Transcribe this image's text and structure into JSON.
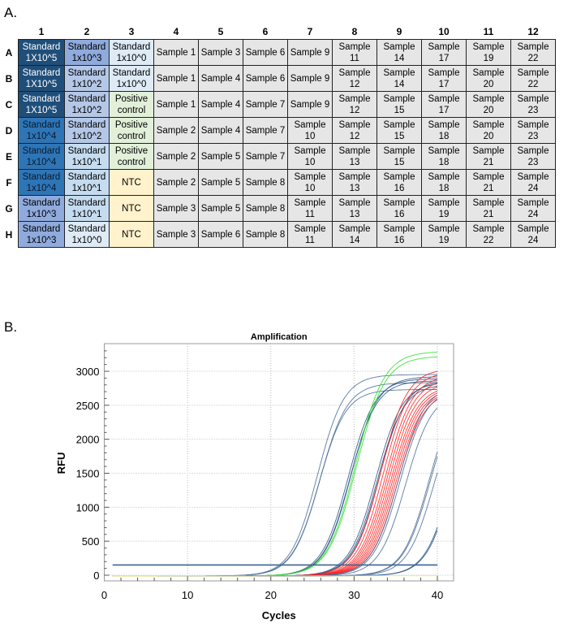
{
  "panels": {
    "a_label": "A.",
    "b_label": "B."
  },
  "plate": {
    "column_headers": [
      "1",
      "2",
      "3",
      "4",
      "5",
      "6",
      "7",
      "8",
      "9",
      "10",
      "11",
      "12"
    ],
    "row_headers": [
      "A",
      "B",
      "C",
      "D",
      "E",
      "F",
      "G",
      "H"
    ],
    "fill_colors": {
      "std_1e5": "#1f4e79",
      "std_1e4": "#2e75b6",
      "std_1e3": "#8faadc",
      "std_1e2": "#b4c7e7",
      "std_1e1": "#c5dcf0",
      "std_1e0": "#deebf7",
      "positive": "#e2f0d9",
      "ntc": "#fff2cc",
      "sample": "#e7e6e6"
    },
    "rows": [
      [
        [
          "Standard 1X10^5",
          "std_1e5"
        ],
        [
          "Standard 1x10^3",
          "std_1e3"
        ],
        [
          "Standard 1x10^0",
          "std_1e0"
        ],
        [
          "Sample 1",
          "sample"
        ],
        [
          "Sample 3",
          "sample"
        ],
        [
          "Sample 6",
          "sample"
        ],
        [
          "Sample 9",
          "sample"
        ],
        [
          "Sample 11",
          "sample"
        ],
        [
          "Sample 14",
          "sample"
        ],
        [
          "Sample 17",
          "sample"
        ],
        [
          "Sample 19",
          "sample"
        ],
        [
          "Sample 22",
          "sample"
        ]
      ],
      [
        [
          "Standard 1X10^5",
          "std_1e5"
        ],
        [
          "Standard 1x10^2",
          "std_1e2"
        ],
        [
          "Standard 1x10^0",
          "std_1e0"
        ],
        [
          "Sample 1",
          "sample"
        ],
        [
          "Sample 4",
          "sample"
        ],
        [
          "Sample 6",
          "sample"
        ],
        [
          "Sample 9",
          "sample"
        ],
        [
          "Sample 12",
          "sample"
        ],
        [
          "Sample 14",
          "sample"
        ],
        [
          "Sample 17",
          "sample"
        ],
        [
          "Sample 20",
          "sample"
        ],
        [
          "Sample 22",
          "sample"
        ]
      ],
      [
        [
          "Standard 1X10^5",
          "std_1e5"
        ],
        [
          "Standard 1x10^2",
          "std_1e2"
        ],
        [
          "Positive control",
          "positive"
        ],
        [
          "Sample 1",
          "sample"
        ],
        [
          "Sample 4",
          "sample"
        ],
        [
          "Sample 7",
          "sample"
        ],
        [
          "Sample 9",
          "sample"
        ],
        [
          "Sample 12",
          "sample"
        ],
        [
          "Sample 15",
          "sample"
        ],
        [
          "Sample 17",
          "sample"
        ],
        [
          "Sample 20",
          "sample"
        ],
        [
          "Sample 23",
          "sample"
        ]
      ],
      [
        [
          "Standard 1x10^4",
          "std_1e4"
        ],
        [
          "Standard 1x10^2",
          "std_1e2"
        ],
        [
          "Positive control",
          "positive"
        ],
        [
          "Sample 2",
          "sample"
        ],
        [
          "Sample 4",
          "sample"
        ],
        [
          "Sample 7",
          "sample"
        ],
        [
          "Sample 10",
          "sample"
        ],
        [
          "Sample 12",
          "sample"
        ],
        [
          "Sample 15",
          "sample"
        ],
        [
          "Sample 18",
          "sample"
        ],
        [
          "Sample 20",
          "sample"
        ],
        [
          "Sample 23",
          "sample"
        ]
      ],
      [
        [
          "Standard 1x10^4",
          "std_1e4"
        ],
        [
          "Standard 1x10^1",
          "std_1e1"
        ],
        [
          "Positive control",
          "positive"
        ],
        [
          "Sample 2",
          "sample"
        ],
        [
          "Sample 5",
          "sample"
        ],
        [
          "Sample 7",
          "sample"
        ],
        [
          "Sample 10",
          "sample"
        ],
        [
          "Sample 13",
          "sample"
        ],
        [
          "Sample 15",
          "sample"
        ],
        [
          "Sample 18",
          "sample"
        ],
        [
          "Sample 21",
          "sample"
        ],
        [
          "Sample 23",
          "sample"
        ]
      ],
      [
        [
          "Standard 1x10^4",
          "std_1e4"
        ],
        [
          "Standard 1x10^1",
          "std_1e1"
        ],
        [
          "NTC",
          "ntc"
        ],
        [
          "Sample 2",
          "sample"
        ],
        [
          "Sample 5",
          "sample"
        ],
        [
          "Sample 8",
          "sample"
        ],
        [
          "Sample 10",
          "sample"
        ],
        [
          "Sample 13",
          "sample"
        ],
        [
          "Sample 16",
          "sample"
        ],
        [
          "Sample 18",
          "sample"
        ],
        [
          "Sample 21",
          "sample"
        ],
        [
          "Sample 24",
          "sample"
        ]
      ],
      [
        [
          "Standard 1x10^3",
          "std_1e3"
        ],
        [
          "Standard 1x10^1",
          "std_1e1"
        ],
        [
          "NTC",
          "ntc"
        ],
        [
          "Sample 3",
          "sample"
        ],
        [
          "Sample 5",
          "sample"
        ],
        [
          "Sample 8",
          "sample"
        ],
        [
          "Sample 11",
          "sample"
        ],
        [
          "Sample 13",
          "sample"
        ],
        [
          "Sample 16",
          "sample"
        ],
        [
          "Sample 19",
          "sample"
        ],
        [
          "Sample 21",
          "sample"
        ],
        [
          "Sample 24",
          "sample"
        ]
      ],
      [
        [
          "Standard 1x10^3",
          "std_1e3"
        ],
        [
          "Standard 1x10^0",
          "std_1e0"
        ],
        [
          "NTC",
          "ntc"
        ],
        [
          "Sample 3",
          "sample"
        ],
        [
          "Sample 6",
          "sample"
        ],
        [
          "Sample 8",
          "sample"
        ],
        [
          "Sample 11",
          "sample"
        ],
        [
          "Sample 14",
          "sample"
        ],
        [
          "Sample 16",
          "sample"
        ],
        [
          "Sample 19",
          "sample"
        ],
        [
          "Sample 22",
          "sample"
        ],
        [
          "Sample 24",
          "sample"
        ]
      ]
    ]
  },
  "chart_data": {
    "type": "line",
    "title": "Amplification",
    "xlabel": "Cycles",
    "ylabel": "RFU",
    "xlim": [
      0,
      42
    ],
    "ylim": [
      -85,
      3400
    ],
    "xticks": [
      0,
      10,
      20,
      30,
      40
    ],
    "yticks": [
      0,
      500,
      1000,
      1500,
      2000,
      2500,
      3000
    ],
    "grid": true,
    "threshold": {
      "value": 150,
      "x_range": [
        1,
        40
      ],
      "color": "#3b6591"
    },
    "curve_model": "sigmoid: RFU = plateau / (1 + exp(-(cycle - midpoint) / slope)), cycles 1-40",
    "curves": [
      {
        "group": "standard 1e5",
        "color": "#4a6e98",
        "midpoint": 25.6,
        "plateau": 2960,
        "slope": 1.6
      },
      {
        "group": "standard 1e5",
        "color": "#4a6e98",
        "midpoint": 25.8,
        "plateau": 2740,
        "slope": 1.6
      },
      {
        "group": "standard 1e5",
        "color": "#4a6e98",
        "midpoint": 25.9,
        "plateau": 2840,
        "slope": 1.65
      },
      {
        "group": "standard 1e4",
        "color": "#2a5585",
        "midpoint": 29.3,
        "plateau": 2900,
        "slope": 1.6
      },
      {
        "group": "standard 1e4",
        "color": "#2a5585",
        "midpoint": 29.5,
        "plateau": 2870,
        "slope": 1.6
      },
      {
        "group": "standard 1e4",
        "color": "#2a5585",
        "midpoint": 29.6,
        "plateau": 2930,
        "slope": 1.6
      },
      {
        "group": "positive control",
        "color": "#2ee02e",
        "midpoint": 30.2,
        "plateau": 3300,
        "slope": 1.7
      },
      {
        "group": "positive control",
        "color": "#2ee02e",
        "midpoint": 30.3,
        "plateau": 3230,
        "slope": 1.7
      },
      {
        "group": "standard 1e3",
        "color": "#2a5585",
        "midpoint": 32.6,
        "plateau": 2850,
        "slope": 1.6
      },
      {
        "group": "standard 1e3",
        "color": "#2a5585",
        "midpoint": 32.8,
        "plateau": 2820,
        "slope": 1.6
      },
      {
        "group": "standard 1e3",
        "color": "#2a5585",
        "midpoint": 33.0,
        "plateau": 2880,
        "slope": 1.6
      },
      {
        "group": "samples",
        "color": "#ff2020",
        "midpoint": 33.2,
        "plateau": 3050,
        "slope": 1.6
      },
      {
        "group": "samples",
        "color": "#ff2020",
        "midpoint": 33.5,
        "plateau": 3000,
        "slope": 1.6
      },
      {
        "group": "samples",
        "color": "#ff2020",
        "midpoint": 33.8,
        "plateau": 2950,
        "slope": 1.6
      },
      {
        "group": "samples",
        "color": "#ff2020",
        "midpoint": 34.0,
        "plateau": 2900,
        "slope": 1.6
      },
      {
        "group": "samples",
        "color": "#ff2020",
        "midpoint": 34.2,
        "plateau": 2850,
        "slope": 1.6
      },
      {
        "group": "samples",
        "color": "#ff2020",
        "midpoint": 34.4,
        "plateau": 2800,
        "slope": 1.6
      },
      {
        "group": "samples",
        "color": "#ff2020",
        "midpoint": 34.6,
        "plateau": 2780,
        "slope": 1.6
      },
      {
        "group": "samples",
        "color": "#ff2020",
        "midpoint": 34.8,
        "plateau": 2760,
        "slope": 1.6
      },
      {
        "group": "samples",
        "color": "#ff2020",
        "midpoint": 35.0,
        "plateau": 2740,
        "slope": 1.6
      },
      {
        "group": "samples",
        "color": "#ff2020",
        "midpoint": 35.2,
        "plateau": 2720,
        "slope": 1.6
      },
      {
        "group": "standard 1e2",
        "color": "#4a6e98",
        "midpoint": 35.3,
        "plateau": 2800,
        "slope": 1.6
      },
      {
        "group": "standard 1e2",
        "color": "#4a6e98",
        "midpoint": 35.5,
        "plateau": 2760,
        "slope": 1.6
      },
      {
        "group": "standard 1e2",
        "color": "#4a6e98",
        "midpoint": 36.2,
        "plateau": 2700,
        "slope": 1.6
      },
      {
        "group": "standard 1e1",
        "color": "#4a6e98",
        "midpoint": 39.0,
        "plateau": 2800,
        "slope": 1.6
      },
      {
        "group": "standard 1e1",
        "color": "#4a6e98",
        "midpoint": 39.1,
        "plateau": 2750,
        "slope": 1.6
      },
      {
        "group": "standard 1e1",
        "color": "#4a6e98",
        "midpoint": 39.6,
        "plateau": 2700,
        "slope": 1.6
      },
      {
        "group": "standard 1e0",
        "color": "#2a5585",
        "midpoint": 41.8,
        "plateau": 2900,
        "slope": 1.6
      },
      {
        "group": "standard 1e0",
        "color": "#2a5585",
        "midpoint": 41.9,
        "plateau": 2850,
        "slope": 1.6
      },
      {
        "group": "NTC",
        "color": "#f3e86a",
        "midpoint": 99,
        "plateau": 0,
        "slope": 1.6
      }
    ]
  }
}
